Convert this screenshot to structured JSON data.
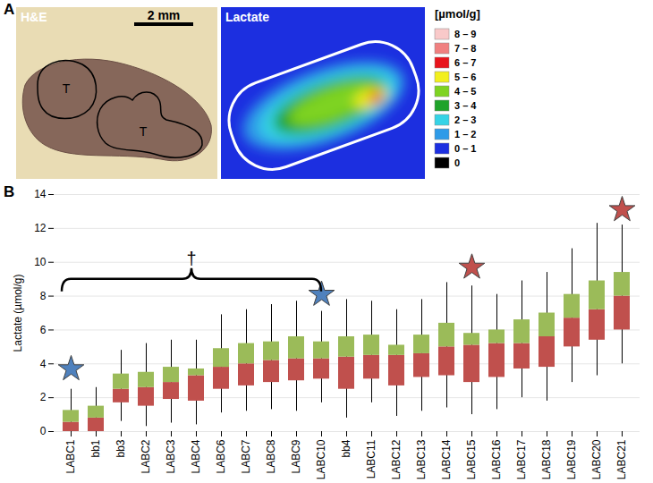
{
  "panel_a": {
    "label": "A",
    "images": [
      {
        "title": "H&E",
        "scale_bar": "2 mm",
        "regions": [
          "T",
          "T"
        ]
      },
      {
        "title": "Lactate"
      }
    ],
    "color_bar": {
      "title": "[µmol/g]",
      "bins": [
        {
          "label": "8 – 9",
          "color": "#f9c9c9"
        },
        {
          "label": "7 – 8",
          "color": "#f08080"
        },
        {
          "label": "6 – 7",
          "color": "#e8141c"
        },
        {
          "label": "5 – 6",
          "color": "#f2ef1d"
        },
        {
          "label": "4 – 5",
          "color": "#7ed321"
        },
        {
          "label": "3 – 4",
          "color": "#1fa32a"
        },
        {
          "label": "2 – 3",
          "color": "#35d3e6"
        },
        {
          "label": "1 – 2",
          "color": "#2f9be8"
        },
        {
          "label": "0 – 1",
          "color": "#1c2fe0"
        },
        {
          "label": "0",
          "color": "#000000"
        }
      ]
    }
  },
  "chart_data": {
    "type": "box",
    "panel_label": "B",
    "ylabel": "Lactate (µmol/g)",
    "categories": [
      "LABC1",
      "bb1",
      "bb3",
      "LABC2",
      "LABC3",
      "LABC4",
      "LABC6",
      "LABC7",
      "LABC8",
      "LABC9",
      "LABC10",
      "bb4",
      "LABC11",
      "LABC12",
      "LABC13",
      "LABC14",
      "LABC15",
      "LABC16",
      "LABC17",
      "LABC18",
      "LABC19",
      "LABC20",
      "LABC21"
    ],
    "min": [
      0,
      0,
      0.6,
      0.3,
      0.5,
      0.4,
      1.1,
      1.2,
      1.3,
      1.2,
      1.7,
      0.8,
      1.7,
      0.9,
      1.2,
      1.4,
      1.0,
      1.3,
      2.0,
      1.8,
      2.9,
      3.3,
      4.0
    ],
    "q1": [
      0,
      0,
      1.7,
      1.5,
      1.9,
      1.8,
      2.5,
      2.7,
      2.9,
      3.0,
      3.1,
      2.5,
      3.1,
      2.7,
      3.2,
      3.3,
      2.9,
      3.2,
      3.7,
      3.8,
      5.0,
      5.4,
      6.0
    ],
    "median": [
      0.55,
      0.8,
      2.5,
      2.6,
      2.9,
      3.3,
      3.8,
      4.0,
      4.2,
      4.3,
      4.3,
      4.4,
      4.5,
      4.5,
      4.6,
      5.0,
      5.1,
      5.2,
      5.2,
      5.6,
      6.7,
      7.2,
      8.0
    ],
    "q3": [
      1.25,
      1.5,
      3.4,
      3.5,
      3.8,
      3.7,
      4.9,
      5.2,
      5.3,
      5.6,
      5.3,
      5.6,
      5.7,
      5.1,
      5.7,
      6.4,
      5.8,
      6.0,
      6.6,
      7.0,
      8.1,
      8.9,
      9.4
    ],
    "max": [
      2.5,
      2.6,
      4.8,
      5.2,
      5.4,
      5.4,
      6.9,
      7.2,
      7.5,
      7.7,
      7.1,
      7.8,
      7.7,
      7.2,
      7.8,
      8.8,
      8.6,
      8.1,
      8.9,
      9.4,
      10.8,
      12.3,
      12.2
    ],
    "box_colors": {
      "lower": "#c0504d",
      "upper": "#9bbb59",
      "whisker": "#000000"
    },
    "ylim": [
      0,
      14
    ],
    "yticks": [
      0,
      2,
      4,
      6,
      8,
      10,
      12,
      14
    ],
    "grid": true,
    "markers": [
      {
        "category": "LABC1",
        "y": 3.7,
        "color": "#4f81bd",
        "marker": "star"
      },
      {
        "category": "LABC10",
        "y": 8.1,
        "color": "#4f81bd",
        "marker": "star"
      },
      {
        "category": "LABC15",
        "y": 9.7,
        "color": "#c0504d",
        "marker": "star"
      },
      {
        "category": "LABC21",
        "y": 13.1,
        "color": "#c0504d",
        "marker": "star"
      }
    ],
    "bracket": {
      "from": "LABC1",
      "to": "LABC10",
      "y": 9,
      "label": "†"
    }
  }
}
